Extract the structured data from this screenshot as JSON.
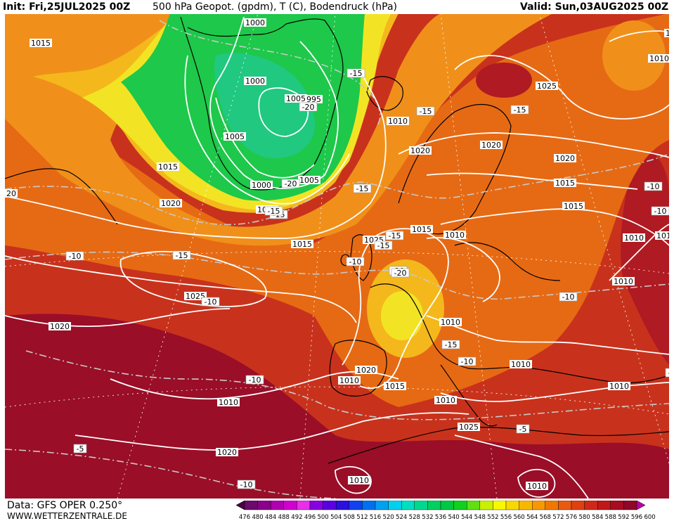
{
  "header": {
    "init": "Init: Fri,25JUL2025 00Z",
    "parameter": "500 hPa Geopot. (gpdm), T (C), Bodendruck (hPa)",
    "valid": "Valid: Sun,03AUG2025 00Z"
  },
  "footer": {
    "source": "Data: GFS OPER 0.250°",
    "website": "WWW.WETTERZENTRALE.DE"
  },
  "colorbar": {
    "ticks": [
      "476",
      "480",
      "484",
      "488",
      "492",
      "496",
      "500",
      "504",
      "508",
      "512",
      "516",
      "520",
      "524",
      "528",
      "532",
      "536",
      "540",
      "544",
      "548",
      "552",
      "556",
      "560",
      "564",
      "568",
      "572",
      "576",
      "580",
      "584",
      "588",
      "592",
      "596",
      "600"
    ],
    "colors": [
      "#4a0040",
      "#6a0a6a",
      "#8a008a",
      "#b000b0",
      "#d000d0",
      "#e830e8",
      "#8800e0",
      "#5a00e0",
      "#2a10e0",
      "#1040f0",
      "#0070f0",
      "#00a0f0",
      "#00d0f0",
      "#00e0c0",
      "#00d890",
      "#00d060",
      "#00c840",
      "#10d020",
      "#60e010",
      "#c8f000",
      "#f8f800",
      "#f8d800",
      "#f8b800",
      "#f89800",
      "#f07800",
      "#e85a10",
      "#e04010",
      "#d02818",
      "#c01818",
      "#a80c20",
      "#900828",
      "#c000a0"
    ]
  },
  "map_colors": {
    "ocean_base": "#c8321c",
    "warm_red": "#b01a22",
    "deep_red": "#9a0e28",
    "orange": "#e66a14",
    "light_orange": "#f0901a",
    "amber": "#f4b81c",
    "yellow": "#f2e424",
    "green": "#1ec84a",
    "bright_green": "#2cd82c",
    "teal": "#20c880",
    "isobar": "#ffffff",
    "isotherm": "#c8c8c8",
    "coast": "#000000"
  },
  "isobar_labels": [
    {
      "text": "1000"
    },
    {
      "text": "1015"
    },
    {
      "text": "1000"
    },
    {
      "text": "1005"
    },
    {
      "text": "995"
    },
    {
      "text": "1005"
    },
    {
      "text": "1005"
    },
    {
      "text": "1000"
    },
    {
      "text": "1010"
    },
    {
      "text": "1010"
    },
    {
      "text": "1025"
    },
    {
      "text": "1020"
    },
    {
      "text": "1020"
    },
    {
      "text": "1005"
    },
    {
      "text": "1015"
    },
    {
      "text": "1020"
    },
    {
      "text": "1015"
    },
    {
      "text": "1010"
    },
    {
      "text": "1015"
    },
    {
      "text": "1025"
    },
    {
      "text": "1020"
    },
    {
      "text": "1015"
    },
    {
      "text": "1010"
    },
    {
      "text": "1010"
    },
    {
      "text": "1025"
    },
    {
      "text": "1020"
    },
    {
      "text": "1010"
    },
    {
      "text": "1010"
    },
    {
      "text": "1020"
    },
    {
      "text": "1010"
    },
    {
      "text": "1015"
    },
    {
      "text": "1010"
    },
    {
      "text": "1010"
    },
    {
      "text": "1010"
    },
    {
      "text": "1025"
    },
    {
      "text": "1010"
    },
    {
      "text": "1020"
    },
    {
      "text": "1010"
    },
    {
      "text": "1010"
    },
    {
      "text": "1015"
    },
    {
      "text": "1010"
    },
    {
      "text": "20"
    }
  ],
  "isotherm_labels": [
    {
      "text": "-15"
    },
    {
      "text": "-20"
    },
    {
      "text": "-15"
    },
    {
      "text": "-15"
    },
    {
      "text": "-20"
    },
    {
      "text": "-15"
    },
    {
      "text": "-15"
    },
    {
      "text": "-20"
    },
    {
      "text": "-15"
    },
    {
      "text": "-10"
    },
    {
      "text": "-15"
    },
    {
      "text": "-10"
    },
    {
      "text": "-10"
    },
    {
      "text": "-20"
    },
    {
      "text": "-15"
    },
    {
      "text": "-10"
    },
    {
      "text": "-10"
    },
    {
      "text": "-15"
    },
    {
      "text": "-10"
    },
    {
      "text": "-10"
    },
    {
      "text": "-5"
    },
    {
      "text": "-5"
    },
    {
      "text": "-5"
    },
    {
      "text": "-10"
    },
    {
      "text": "-15"
    },
    {
      "text": "-10"
    }
  ]
}
